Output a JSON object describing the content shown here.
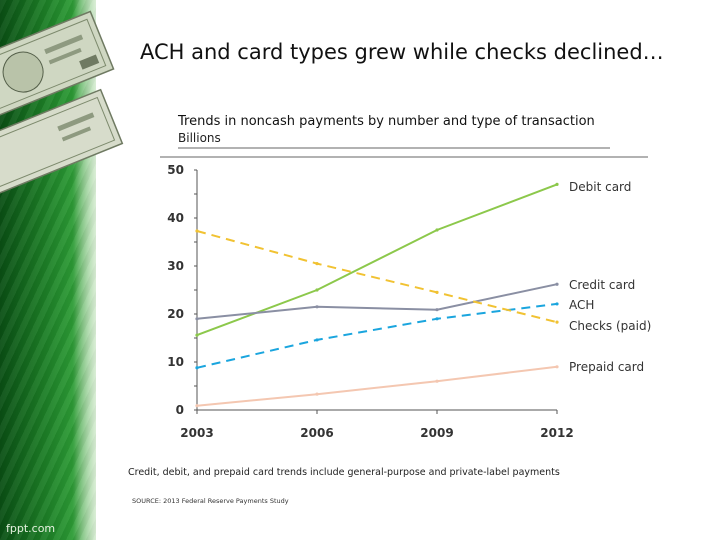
{
  "slide": {
    "title": "ACH and card types grew while checks declined…",
    "note": "Credit, debit, and prepaid card trends include general-purpose and private-label payments",
    "source": "SOURCE: 2013 Federal Reserve Payments Study",
    "footer_brand": "fppt.com"
  },
  "chart_data": {
    "type": "line",
    "title": "Trends in noncash payments by number and type of transaction",
    "subtitle": "Billions",
    "x": [
      2003,
      2006,
      2009,
      2012
    ],
    "xticks": [
      "2003",
      "2006",
      "2009",
      "2012"
    ],
    "ylim": [
      0,
      50
    ],
    "yticks": [
      "0",
      "10",
      "20",
      "30",
      "40",
      "50"
    ],
    "legend_placement": "right-end labels",
    "series": [
      {
        "name": "Debit card",
        "values": [
          15.6,
          25.0,
          37.5,
          47.0
        ],
        "color": "#8cc84b",
        "dash": "solid"
      },
      {
        "name": "Credit card",
        "values": [
          19.0,
          21.5,
          20.9,
          26.2
        ],
        "color": "#8a8fa3",
        "dash": "solid"
      },
      {
        "name": "ACH",
        "values": [
          8.8,
          14.6,
          19.0,
          22.1
        ],
        "color": "#1aa5de",
        "dash": "dashed"
      },
      {
        "name": "Checks (paid)",
        "values": [
          37.3,
          30.5,
          24.5,
          18.3
        ],
        "color": "#f1c232",
        "dash": "dashed"
      },
      {
        "name": "Prepaid card",
        "values": [
          0.9,
          3.3,
          6.0,
          9.0
        ],
        "color": "#f4c7b1",
        "dash": "solid"
      }
    ]
  }
}
